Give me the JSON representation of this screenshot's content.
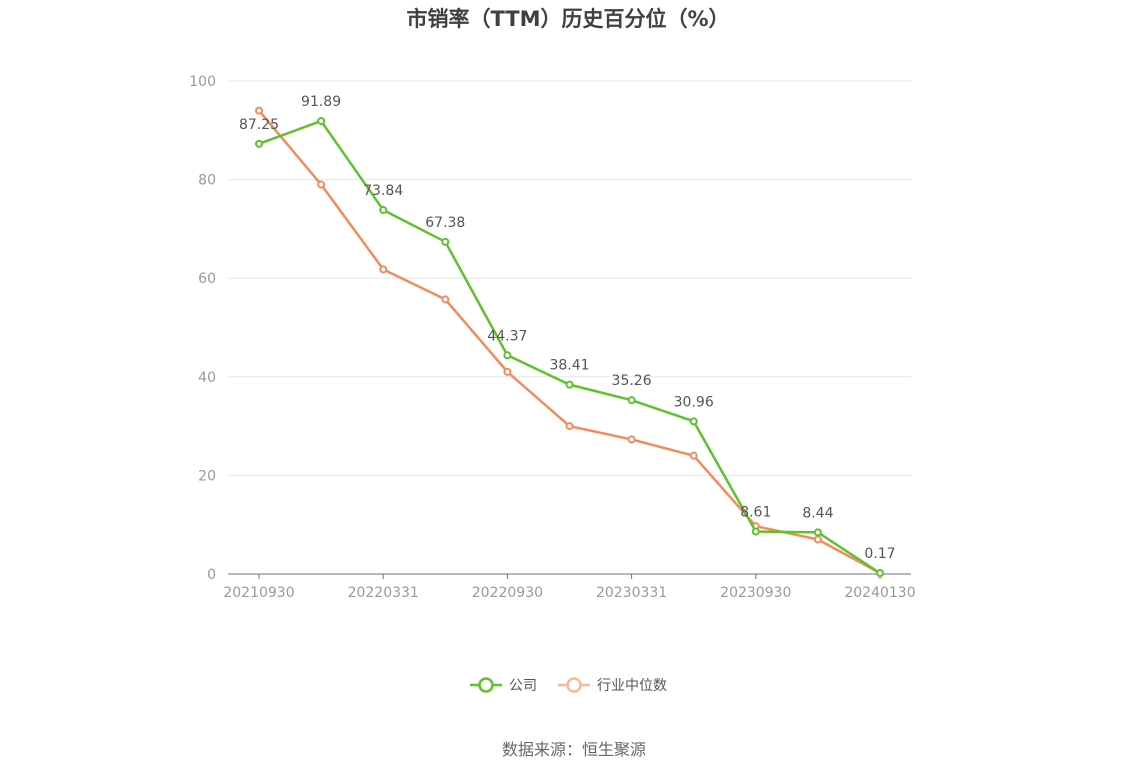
{
  "chart_data": {
    "type": "line",
    "title": "市销率（TTM）历史百分位（%）",
    "source": "数据来源：恒生聚源",
    "ylim": [
      0,
      100
    ],
    "y_ticks": [
      0,
      20,
      40,
      60,
      80,
      100
    ],
    "x_tick_labels": [
      "20210930",
      "20220331",
      "20220930",
      "20230331",
      "20230930",
      "20240130"
    ],
    "x": [
      "20210930",
      "20211231",
      "20220331",
      "20220630",
      "20220930",
      "20221231",
      "20230331",
      "20230630",
      "20230930",
      "20231231",
      "20240130"
    ],
    "grid": "horizontal",
    "legend_position": "bottom",
    "series": [
      {
        "name": "公司",
        "color": "#5dc22d",
        "values": [
          87.25,
          91.89,
          73.84,
          67.38,
          44.37,
          38.41,
          35.26,
          30.96,
          8.61,
          8.44,
          0.17
        ],
        "value_labels": [
          "87.25",
          "91.89",
          "73.84",
          "67.38",
          "44.37",
          "38.41",
          "35.26",
          "30.96",
          "8.61",
          "8.44",
          "0.17"
        ]
      },
      {
        "name": "行业中位数",
        "color": "#f28c5a",
        "values": [
          94.0,
          79.0,
          61.8,
          55.7,
          41.0,
          30.0,
          27.3,
          24.0,
          9.7,
          7.0,
          0.2
        ]
      }
    ]
  }
}
